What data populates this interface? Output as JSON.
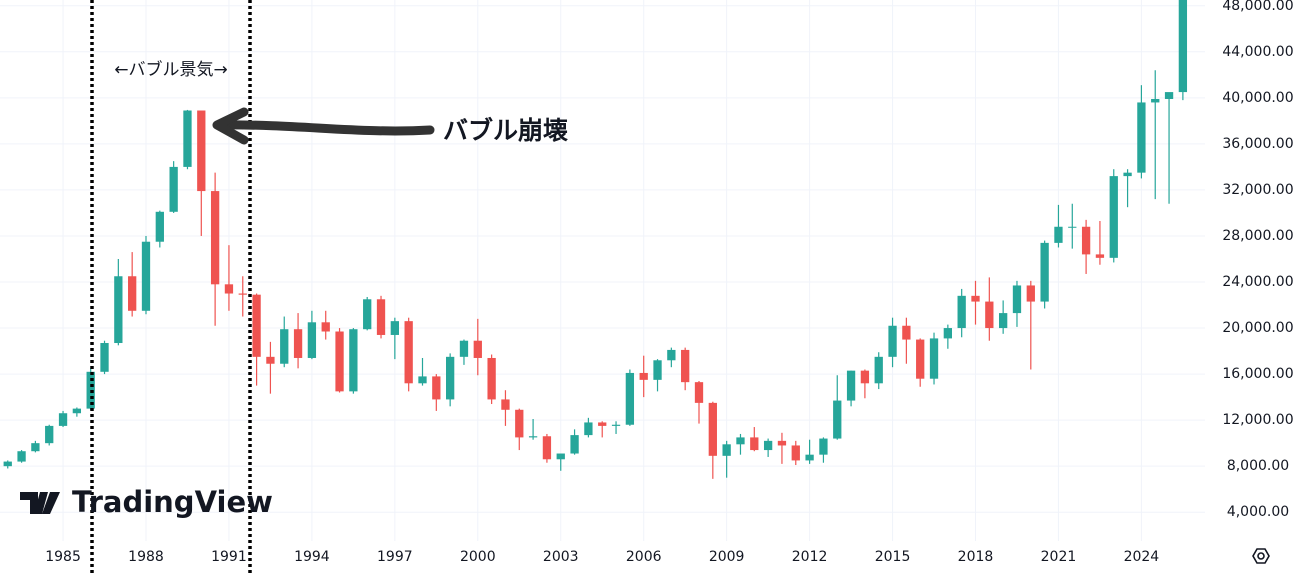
{
  "chart_data": {
    "type": "candlestick",
    "annotations": [
      "←バブル景気→",
      "バブル崩壊"
    ],
    "watermark": "TradingView",
    "up_color": "#26a69a",
    "down_color": "#ef5350",
    "grid": true,
    "xlim": [
      1982.72,
      2026.3
    ],
    "xticks": [
      1985,
      1988,
      1991,
      1994,
      1997,
      2000,
      2003,
      2006,
      2009,
      2012,
      2015,
      2018,
      2021,
      2024
    ],
    "ylim": [
      1500,
      48500
    ],
    "yticks": [
      {
        "value": 4000,
        "label": "4,000.00"
      },
      {
        "value": 8000,
        "label": "8,000.00"
      },
      {
        "value": 12000,
        "label": "12,000.00"
      },
      {
        "value": 16000,
        "label": "16,000.00"
      },
      {
        "value": 20000,
        "label": "20,000.00"
      },
      {
        "value": 24000,
        "label": "24,000.00"
      },
      {
        "value": 28000,
        "label": "28,000.00"
      },
      {
        "value": 32000,
        "label": "32,000.00"
      },
      {
        "value": 36000,
        "label": "36,000.00"
      },
      {
        "value": 40000,
        "label": "40,000.00"
      },
      {
        "value": 44000,
        "label": "44,000.00"
      },
      {
        "value": 48000,
        "label": "48,000.00"
      }
    ],
    "x": [
      1983.0,
      1983.5,
      1984.0,
      1984.5,
      1985.0,
      1985.5,
      1986.0,
      1986.5,
      1987.0,
      1987.5,
      1988.0,
      1988.5,
      1989.0,
      1989.5,
      1990.0,
      1990.5,
      1991.0,
      1991.5,
      1992.0,
      1992.5,
      1993.0,
      1993.5,
      1994.0,
      1994.5,
      1995.0,
      1995.5,
      1996.0,
      1996.5,
      1997.0,
      1997.5,
      1998.0,
      1998.5,
      1999.0,
      1999.5,
      2000.0,
      2000.5,
      2001.0,
      2001.5,
      2002.0,
      2002.5,
      2003.0,
      2003.5,
      2004.0,
      2004.5,
      2005.0,
      2005.5,
      2006.0,
      2006.5,
      2007.0,
      2007.5,
      2008.0,
      2008.5,
      2009.0,
      2009.5,
      2010.0,
      2010.5,
      2011.0,
      2011.5,
      2012.0,
      2012.5,
      2013.0,
      2013.5,
      2014.0,
      2014.5,
      2015.0,
      2015.5,
      2016.0,
      2016.5,
      2017.0,
      2017.5,
      2018.0,
      2018.5,
      2019.0,
      2019.5,
      2020.0,
      2020.5,
      2021.0,
      2021.5,
      2022.0,
      2022.5,
      2023.0,
      2023.5,
      2024.0,
      2024.5,
      2025.0,
      2025.5
    ],
    "open": [
      8000,
      8400,
      9300,
      10000,
      11500,
      12600,
      13000,
      16200,
      18700,
      24500,
      21500,
      27500,
      30100,
      34000,
      38900,
      31900,
      23800,
      23000,
      22900,
      17500,
      16900,
      19900,
      17400,
      20500,
      19700,
      14500,
      19900,
      22500,
      19400,
      20600,
      15200,
      15800,
      13800,
      17500,
      18900,
      17400,
      13800,
      12900,
      10500,
      10600,
      8600,
      9100,
      10700,
      11800,
      11500,
      11600,
      16100,
      15500,
      17200,
      18100,
      15300,
      13500,
      8900,
      9900,
      10500,
      9400,
      10200,
      9800,
      8500,
      9000,
      10400,
      13700,
      16300,
      15200,
      17500,
      20200,
      19000,
      15600,
      19100,
      20000,
      22800,
      22300,
      20000,
      21300,
      23700,
      22300,
      27400,
      28800,
      28800,
      26400,
      26100,
      33200,
      33500,
      39600,
      39900,
      40500
    ],
    "high": [
      8500,
      9400,
      10200,
      11600,
      12800,
      13100,
      16500,
      18900,
      26000,
      26600,
      28000,
      30200,
      34500,
      38950,
      38900,
      33500,
      27200,
      24500,
      23000,
      18800,
      21000,
      21300,
      21500,
      21500,
      20000,
      20000,
      22700,
      22800,
      20900,
      20900,
      17400,
      16000,
      17800,
      19000,
      20800,
      17700,
      14600,
      13000,
      12100,
      10800,
      9100,
      11200,
      12200,
      11900,
      11900,
      16400,
      17600,
      17300,
      18300,
      18300,
      15400,
      13600,
      10200,
      10800,
      11400,
      10400,
      10900,
      10200,
      10300,
      10500,
      15900,
      16300,
      16400,
      17900,
      20900,
      20900,
      19100,
      19600,
      20300,
      23400,
      24100,
      24400,
      22400,
      24100,
      24100,
      27600,
      30700,
      30800,
      29400,
      29300,
      33800,
      33800,
      41100,
      42400,
      40400,
      49000
    ],
    "low": [
      7800,
      8300,
      9200,
      9800,
      11400,
      12300,
      12900,
      16000,
      18500,
      21000,
      21200,
      27000,
      30000,
      33800,
      28000,
      20200,
      21500,
      21000,
      15000,
      14300,
      16600,
      16500,
      17300,
      19000,
      14400,
      14300,
      19800,
      19100,
      17300,
      14500,
      15000,
      12800,
      13200,
      16800,
      15900,
      13400,
      11500,
      9400,
      10300,
      8300,
      7600,
      9000,
      10500,
      10500,
      10800,
      11500,
      14000,
      14500,
      16600,
      14600,
      11700,
      6900,
      7000,
      9000,
      9300,
      8800,
      8200,
      8100,
      8200,
      8300,
      10300,
      13200,
      13900,
      14700,
      16600,
      16900,
      14900,
      15100,
      18200,
      19200,
      20300,
      18900,
      19500,
      20100,
      16400,
      21700,
      27000,
      26900,
      24700,
      25500,
      25700,
      30500,
      33000,
      31200,
      30800,
      39800
    ],
    "close": [
      8400,
      9300,
      10000,
      11500,
      12600,
      13000,
      16200,
      18700,
      24500,
      21500,
      27500,
      30100,
      34000,
      38900,
      31900,
      23800,
      23000,
      22900,
      17500,
      16900,
      19900,
      17400,
      20500,
      19700,
      14500,
      19900,
      22500,
      19400,
      20600,
      15200,
      15800,
      13800,
      17500,
      18900,
      17400,
      13800,
      12900,
      10500,
      10600,
      8600,
      9100,
      10700,
      11800,
      11500,
      11600,
      16100,
      15500,
      17200,
      18100,
      15300,
      13500,
      8900,
      9900,
      10500,
      9400,
      10200,
      9800,
      8500,
      9000,
      10400,
      13700,
      16300,
      15200,
      17500,
      20200,
      19000,
      15600,
      19100,
      20000,
      22800,
      22300,
      20000,
      21300,
      23700,
      22300,
      27400,
      28800,
      28800,
      26400,
      26100,
      33200,
      33500,
      39600,
      39900,
      40500,
      48800
    ]
  }
}
